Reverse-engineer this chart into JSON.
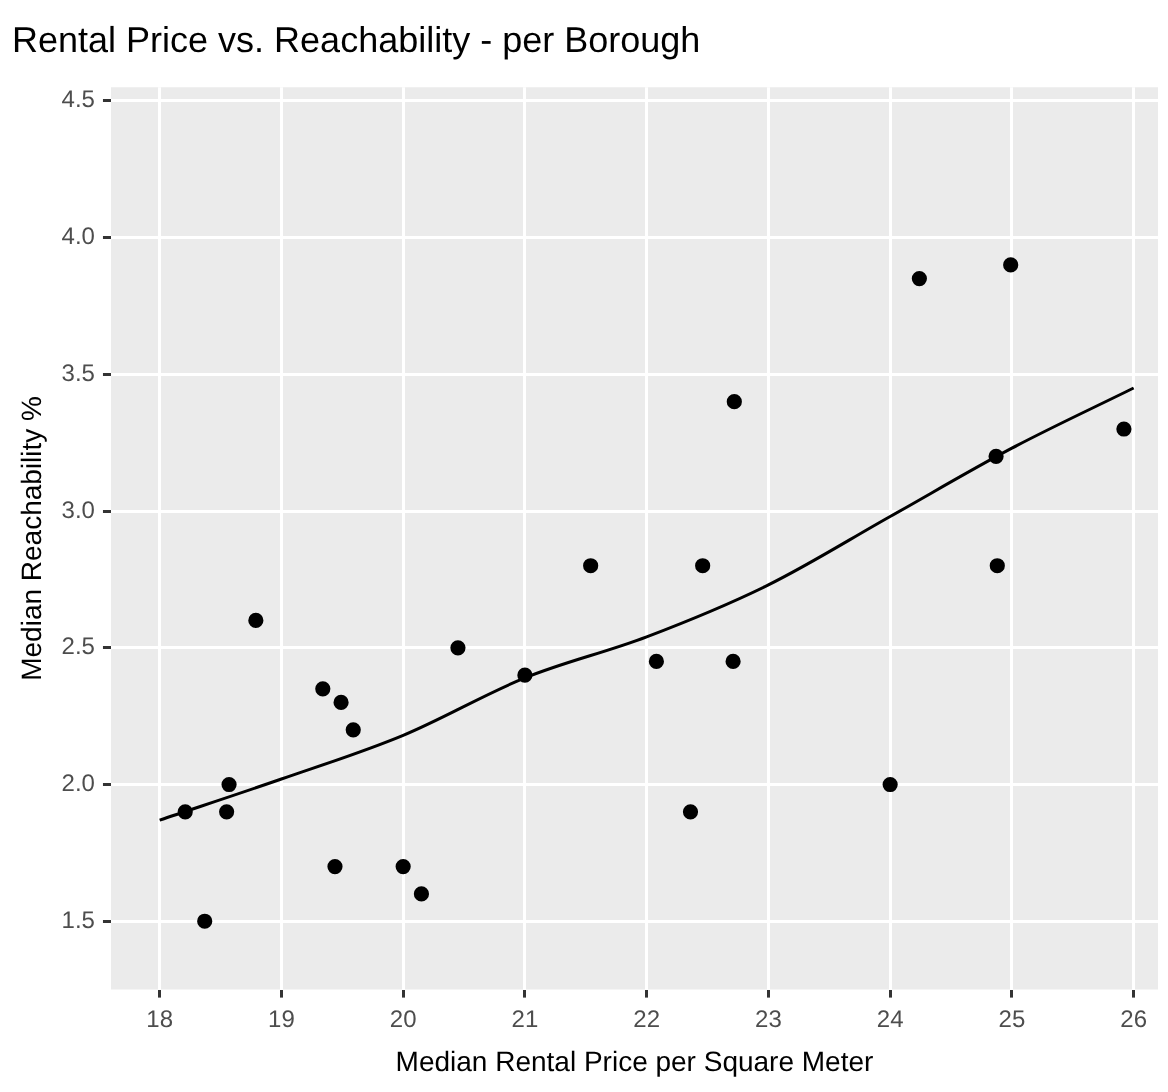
{
  "chart_data": {
    "type": "scatter",
    "title": "Rental Price vs. Reachability - per Borough",
    "xlabel": "Median Rental Price per Square Meter",
    "ylabel": "Median Reachability %",
    "xlim": [
      17.6,
      26.2
    ],
    "ylim": [
      1.25,
      4.55
    ],
    "xticks": [
      18,
      19,
      20,
      21,
      22,
      23,
      24,
      25,
      26
    ],
    "yticks": [
      {
        "value": 1.5,
        "label": "1.5"
      },
      {
        "value": 2,
        "label": "2.0"
      },
      {
        "value": 2.5,
        "label": "2.5"
      },
      {
        "value": 3,
        "label": "3.0"
      },
      {
        "value": 3.5,
        "label": "3.5"
      },
      {
        "value": 4,
        "label": "4.0"
      },
      {
        "value": 4.5,
        "label": "4.5"
      }
    ],
    "grid": true,
    "legend": false,
    "marker": "circle",
    "series": [
      {
        "type": "scatter",
        "color": "#000000",
        "x": [
          18.21,
          18.37,
          18.55,
          18.57,
          18.79,
          19.34,
          19.49,
          19.44,
          19.59,
          20.0,
          20.15,
          20.45,
          21.0,
          21.54,
          22.46,
          22.08,
          22.71,
          22.36,
          22.72,
          24.0,
          24.24,
          24.99,
          24.87,
          24.88,
          25.92
        ],
        "values": [
          1.9,
          1.5,
          1.9,
          2.0,
          2.6,
          2.35,
          2.3,
          1.7,
          2.2,
          1.7,
          1.6,
          2.5,
          2.4,
          2.8,
          2.8,
          2.45,
          2.45,
          1.9,
          3.4,
          2.0,
          3.85,
          3.9,
          3.2,
          2.8,
          3.3
        ]
      },
      {
        "type": "line",
        "color": "#000000",
        "marker": "none",
        "line_style": "solid",
        "x": [
          18,
          19,
          20,
          21,
          22,
          23,
          24,
          25,
          26
        ],
        "values": [
          1.87,
          2.02,
          2.18,
          2.39,
          2.54,
          2.73,
          2.98,
          3.23,
          3.45
        ]
      }
    ]
  }
}
